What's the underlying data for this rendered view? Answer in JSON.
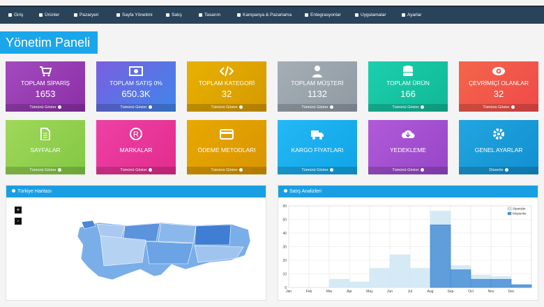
{
  "navbar": {
    "items": [
      "Giriş",
      "Ürünler",
      "Pazaryeri",
      "Sayfa Yönetimi",
      "Satış",
      "Tasarım",
      "Kampanya & Pazarlama",
      "Entegrasyonlar",
      "Uygulamalar",
      "Ayarlar"
    ]
  },
  "page_title": "Yönetim Paneli",
  "cards": [
    {
      "title": "TOPLAM SİPARİŞ",
      "value": 1653,
      "link": "Tümünü Göster"
    },
    {
      "title": "TOPLAM SATIŞ 0%",
      "value": "650.3K",
      "link": "Tümünü Göster"
    },
    {
      "title": "TOPLAM KATEGORİ",
      "value": 32,
      "link": "Tümünü Göster"
    },
    {
      "title": "TOPLAM MÜŞTERİ",
      "value": 1132,
      "link": "Tümünü Göster"
    },
    {
      "title": "TOPLAM ÜRÜN",
      "value": 166,
      "link": "Tümünü Göster"
    },
    {
      "title": "ÇEVRİMİÇİ OLANLAR",
      "value": 32,
      "link": "Tümünü Göster"
    },
    {
      "title": "SAYFALAR",
      "link": "Tümünü Göster"
    },
    {
      "title": "MARKALAR",
      "link": "Tümünü Göster"
    },
    {
      "title": "ÖDEME METODLARI",
      "link": "Tümünü Göster"
    },
    {
      "title": "KARGO FİYATLARI",
      "link": "Tümünü Göster"
    },
    {
      "title": "YEDEKLEME",
      "link": "Tümünü Göster"
    },
    {
      "title": "GENEL AYARLAR",
      "link": "Düzenle"
    }
  ],
  "panels": {
    "map": {
      "title": "Türkiye Haritası",
      "zoom_in": "+",
      "zoom_out": "-"
    },
    "sales": {
      "title": "Satış Analizleri",
      "chart": {
        "type": "bar",
        "categories": [
          "Jan",
          "Feb",
          "Mar",
          "Apr",
          "May",
          "Jun",
          "Jul",
          "Aug",
          "Sep",
          "Oct",
          "Nov",
          "Dec"
        ],
        "series": [
          {
            "name": "Siparişler",
            "color": "#cfe6f5",
            "values": [
              0,
              0,
              6,
              4,
              14,
              24,
              14,
              56,
              16,
              9,
              8,
              2
            ]
          },
          {
            "name": "Müşteriler",
            "color": "#4a8fd6",
            "values": [
              0,
              0,
              0,
              0,
              0,
              0,
              0,
              46,
              13,
              6,
              6,
              2
            ]
          }
        ],
        "ylim": [
          0,
          60
        ],
        "yticks": [
          0,
          10,
          20,
          30,
          40,
          50,
          60
        ],
        "grid": true
      }
    }
  }
}
